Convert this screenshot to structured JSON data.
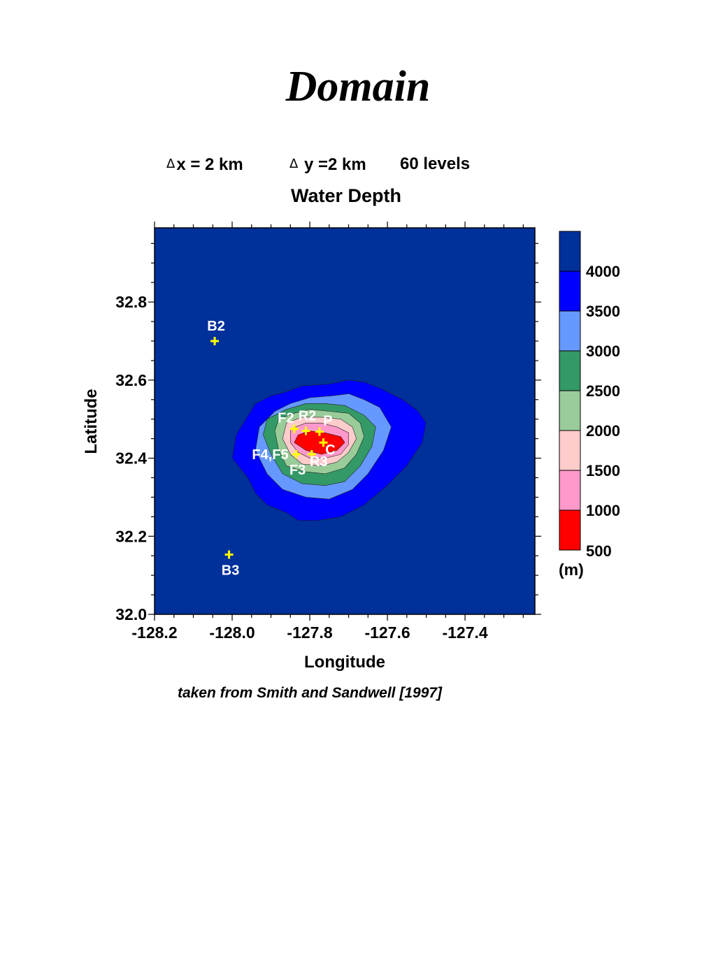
{
  "page": {
    "title": "Domain"
  },
  "grid_info": {
    "dx": "x = 2 km",
    "dy": "y =2 km",
    "levels": "60 levels",
    "delta_symbol": "Δ"
  },
  "chart_data": {
    "type": "contour",
    "title": "Water Depth",
    "xlabel": "Longitude",
    "ylabel": "Latitude",
    "xlim": [
      -128.2,
      -127.22
    ],
    "ylim": [
      32.0,
      32.99
    ],
    "x_ticks": [
      -128.2,
      -128.0,
      -127.8,
      -127.6,
      -127.4
    ],
    "x_tick_labels": [
      "-128.2",
      "-128.0",
      "-127.8",
      "-127.6",
      "-127.4"
    ],
    "y_ticks": [
      32.0,
      32.2,
      32.4,
      32.6,
      32.8
    ],
    "y_tick_labels": [
      "32.0",
      "32.2",
      "32.4",
      "32.6",
      "32.8"
    ],
    "background_color": "#00309a",
    "contours": [
      {
        "level": 3500,
        "color": "#0000ff",
        "points": [
          [
            -127.99,
            32.46
          ],
          [
            -127.94,
            32.54
          ],
          [
            -127.9,
            32.56
          ],
          [
            -127.86,
            32.57
          ],
          [
            -127.82,
            32.585
          ],
          [
            -127.75,
            32.59
          ],
          [
            -127.7,
            32.6
          ],
          [
            -127.66,
            32.595
          ],
          [
            -127.62,
            32.58
          ],
          [
            -127.56,
            32.55
          ],
          [
            -127.52,
            32.52
          ],
          [
            -127.5,
            32.49
          ],
          [
            -127.51,
            32.44
          ],
          [
            -127.55,
            32.38
          ],
          [
            -127.6,
            32.33
          ],
          [
            -127.66,
            32.28
          ],
          [
            -127.72,
            32.25
          ],
          [
            -127.78,
            32.24
          ],
          [
            -127.83,
            32.24
          ],
          [
            -127.86,
            32.26
          ],
          [
            -127.91,
            32.28
          ],
          [
            -127.94,
            32.31
          ],
          [
            -127.96,
            32.35
          ],
          [
            -128.0,
            32.4
          ]
        ]
      },
      {
        "level": 3000,
        "color": "#6699ff",
        "points": [
          [
            -127.93,
            32.48
          ],
          [
            -127.89,
            32.52
          ],
          [
            -127.85,
            32.54
          ],
          [
            -127.8,
            32.555
          ],
          [
            -127.74,
            32.56
          ],
          [
            -127.7,
            32.565
          ],
          [
            -127.66,
            32.55
          ],
          [
            -127.62,
            32.53
          ],
          [
            -127.59,
            32.48
          ],
          [
            -127.61,
            32.42
          ],
          [
            -127.65,
            32.36
          ],
          [
            -127.69,
            32.32
          ],
          [
            -127.75,
            32.295
          ],
          [
            -127.81,
            32.3
          ],
          [
            -127.87,
            32.32
          ],
          [
            -127.91,
            32.36
          ],
          [
            -127.94,
            32.42
          ]
        ]
      },
      {
        "level": 2500,
        "color": "#339966",
        "points": [
          [
            -127.91,
            32.5
          ],
          [
            -127.86,
            32.525
          ],
          [
            -127.81,
            32.54
          ],
          [
            -127.76,
            32.54
          ],
          [
            -127.71,
            32.535
          ],
          [
            -127.66,
            32.51
          ],
          [
            -127.63,
            32.48
          ],
          [
            -127.64,
            32.43
          ],
          [
            -127.67,
            32.38
          ],
          [
            -127.71,
            32.34
          ],
          [
            -127.76,
            32.33
          ],
          [
            -127.82,
            32.335
          ],
          [
            -127.87,
            32.36
          ],
          [
            -127.9,
            32.41
          ],
          [
            -127.92,
            32.46
          ]
        ]
      },
      {
        "level": 2000,
        "color": "#99cc99",
        "points": [
          [
            -127.88,
            32.5
          ],
          [
            -127.84,
            32.515
          ],
          [
            -127.8,
            32.525
          ],
          [
            -127.75,
            32.52
          ],
          [
            -127.7,
            32.515
          ],
          [
            -127.67,
            32.49
          ],
          [
            -127.66,
            32.455
          ],
          [
            -127.68,
            32.41
          ],
          [
            -127.71,
            32.375
          ],
          [
            -127.76,
            32.36
          ],
          [
            -127.81,
            32.365
          ],
          [
            -127.86,
            32.38
          ],
          [
            -127.88,
            32.42
          ],
          [
            -127.89,
            32.47
          ]
        ]
      },
      {
        "level": 1500,
        "color": "#ffcccc",
        "points": [
          [
            -127.86,
            32.49
          ],
          [
            -127.82,
            32.505
          ],
          [
            -127.77,
            32.505
          ],
          [
            -127.72,
            32.5
          ],
          [
            -127.69,
            32.48
          ],
          [
            -127.68,
            32.45
          ],
          [
            -127.7,
            32.415
          ],
          [
            -127.73,
            32.39
          ],
          [
            -127.77,
            32.38
          ],
          [
            -127.82,
            32.385
          ],
          [
            -127.85,
            32.41
          ],
          [
            -127.87,
            32.45
          ]
        ]
      },
      {
        "level": 1000,
        "color": "#ff99cc",
        "points": [
          [
            -127.85,
            32.475
          ],
          [
            -127.81,
            32.49
          ],
          [
            -127.77,
            32.49
          ],
          [
            -127.73,
            32.48
          ],
          [
            -127.7,
            32.465
          ],
          [
            -127.7,
            32.435
          ],
          [
            -127.72,
            32.41
          ],
          [
            -127.76,
            32.4
          ],
          [
            -127.8,
            32.4
          ],
          [
            -127.83,
            32.415
          ],
          [
            -127.85,
            32.44
          ]
        ]
      },
      {
        "level": 500,
        "color": "#ff0000",
        "points": [
          [
            -127.83,
            32.46
          ],
          [
            -127.8,
            32.47
          ],
          [
            -127.76,
            32.465
          ],
          [
            -127.72,
            32.455
          ],
          [
            -127.71,
            32.44
          ],
          [
            -127.73,
            32.42
          ],
          [
            -127.77,
            32.41
          ],
          [
            -127.81,
            32.42
          ],
          [
            -127.84,
            32.44
          ]
        ]
      }
    ],
    "colorbar": {
      "unit_label": "(m)",
      "bands": [
        {
          "color": "#00309a",
          "label": ""
        },
        {
          "color": "#0000ff",
          "label": "4000"
        },
        {
          "color": "#6699ff",
          "label": "3500"
        },
        {
          "color": "#339966",
          "label": "3000"
        },
        {
          "color": "#99cc99",
          "label": "2500"
        },
        {
          "color": "#ffcccc",
          "label": "2000"
        },
        {
          "color": "#ff99cc",
          "label": "1500"
        },
        {
          "color": "#ff0000",
          "label": "1000"
        }
      ],
      "bottom_label": "500"
    },
    "stations": [
      {
        "name": "B2",
        "lon": -128.045,
        "lat": 32.7,
        "label_pos": "above"
      },
      {
        "name": "B3",
        "lon": -128.008,
        "lat": 32.153,
        "label_pos": "below"
      },
      {
        "name": "F2",
        "lon": -127.84,
        "lat": 32.475,
        "label_pos": "above-left"
      },
      {
        "name": "R2",
        "lon": -127.81,
        "lat": 32.47,
        "label_pos": "above"
      },
      {
        "name": "P",
        "lon": -127.775,
        "lat": 32.468,
        "label_pos": "above-right"
      },
      {
        "name": "C",
        "lon": -127.765,
        "lat": 32.44,
        "label_pos": "below-right"
      },
      {
        "name": "F4,F5",
        "lon": -127.835,
        "lat": 32.41,
        "label_pos": "left"
      },
      {
        "name": "F3",
        "lon": -127.835,
        "lat": 32.41,
        "label_pos": "below"
      },
      {
        "name": "R3",
        "lon": -127.795,
        "lat": 32.41,
        "label_pos": "below-right"
      }
    ],
    "station_marker_color": "#ffff00",
    "station_label_color": "#ffffff"
  },
  "source_note": "taken from Smith and Sandwell [1997]"
}
